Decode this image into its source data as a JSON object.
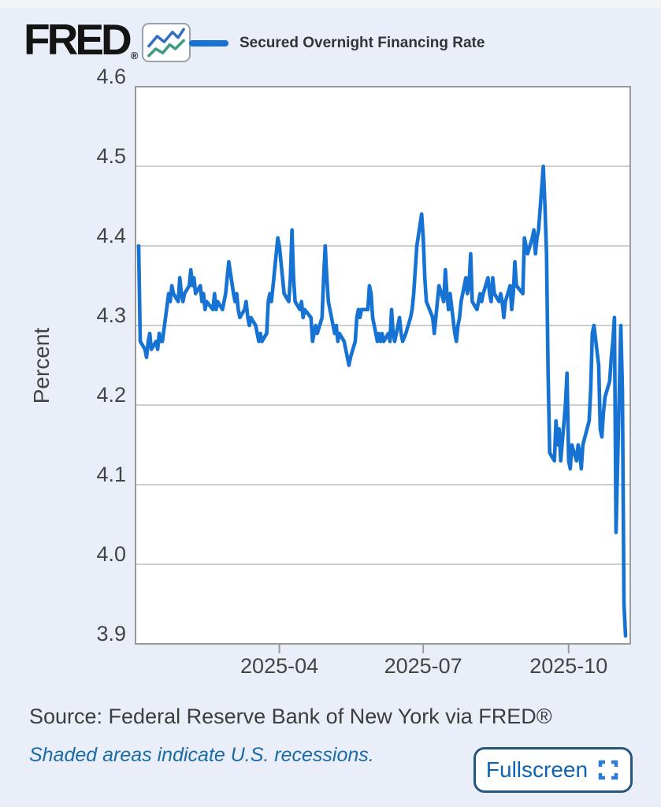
{
  "page": {
    "background": "#e9eef8",
    "top_strip_color": "#f3f4f6"
  },
  "header": {
    "logo_text": "FRED",
    "logo_registered": "®",
    "logo_icon": "fred-sparkline-icon",
    "logo_icon_colors": {
      "upper_line": "#336fc0",
      "lower_line": "#3d9b80"
    }
  },
  "legend": {
    "swatch_color": "#1673d3",
    "label": "Secured Overnight Financing Rate"
  },
  "chart_data": {
    "type": "line",
    "title": "",
    "ylabel": "Percent",
    "ylim": [
      3.9,
      4.6
    ],
    "y_ticks": [
      3.9,
      4.0,
      4.1,
      4.2,
      4.3,
      4.4,
      4.5,
      4.6
    ],
    "x_ticks": [
      {
        "label": "2025-04",
        "date": "2025-04-01"
      },
      {
        "label": "2025-07",
        "date": "2025-07-01"
      },
      {
        "label": "2025-10",
        "date": "2025-10-01"
      }
    ],
    "x_domain": [
      "2025-01-01",
      "2025-11-09"
    ],
    "grid": "horizontal",
    "legend_position": "top",
    "plot_bg": "#ffffff",
    "grid_color": "#cdcdcd",
    "axis_color": "#9a9a9a",
    "line_color": "#1673d3",
    "series": [
      {
        "name": "Secured Overnight Financing Rate",
        "units": "Percent",
        "dates": [
          "2025-01-02",
          "2025-01-03",
          "2025-01-06",
          "2025-01-07",
          "2025-01-08",
          "2025-01-09",
          "2025-01-10",
          "2025-01-13",
          "2025-01-14",
          "2025-01-15",
          "2025-01-16",
          "2025-01-17",
          "2025-01-21",
          "2025-01-22",
          "2025-01-23",
          "2025-01-24",
          "2025-01-27",
          "2025-01-28",
          "2025-01-29",
          "2025-01-30",
          "2025-01-31",
          "2025-02-03",
          "2025-02-04",
          "2025-02-05",
          "2025-02-06",
          "2025-02-07",
          "2025-02-10",
          "2025-02-11",
          "2025-02-12",
          "2025-02-13",
          "2025-02-14",
          "2025-02-18",
          "2025-02-19",
          "2025-02-20",
          "2025-02-21",
          "2025-02-24",
          "2025-02-25",
          "2025-02-26",
          "2025-02-27",
          "2025-02-28",
          "2025-03-03",
          "2025-03-04",
          "2025-03-05",
          "2025-03-06",
          "2025-03-07",
          "2025-03-10",
          "2025-03-11",
          "2025-03-12",
          "2025-03-13",
          "2025-03-14",
          "2025-03-17",
          "2025-03-18",
          "2025-03-19",
          "2025-03-20",
          "2025-03-21",
          "2025-03-24",
          "2025-03-25",
          "2025-03-26",
          "2025-03-27",
          "2025-03-28",
          "2025-03-31",
          "2025-04-01",
          "2025-04-02",
          "2025-04-03",
          "2025-04-04",
          "2025-04-07",
          "2025-04-08",
          "2025-04-09",
          "2025-04-10",
          "2025-04-11",
          "2025-04-14",
          "2025-04-15",
          "2025-04-16",
          "2025-04-17",
          "2025-04-21",
          "2025-04-22",
          "2025-04-23",
          "2025-04-24",
          "2025-04-25",
          "2025-04-28",
          "2025-04-29",
          "2025-04-30",
          "2025-05-01",
          "2025-05-02",
          "2025-05-05",
          "2025-05-06",
          "2025-05-07",
          "2025-05-08",
          "2025-05-09",
          "2025-05-12",
          "2025-05-13",
          "2025-05-14",
          "2025-05-15",
          "2025-05-16",
          "2025-05-19",
          "2025-05-20",
          "2025-05-21",
          "2025-05-22",
          "2025-05-23",
          "2025-05-27",
          "2025-05-28",
          "2025-05-29",
          "2025-05-30",
          "2025-06-02",
          "2025-06-03",
          "2025-06-04",
          "2025-06-05",
          "2025-06-06",
          "2025-06-09",
          "2025-06-10",
          "2025-06-11",
          "2025-06-12",
          "2025-06-13",
          "2025-06-16",
          "2025-06-17",
          "2025-06-18",
          "2025-06-20",
          "2025-06-23",
          "2025-06-24",
          "2025-06-25",
          "2025-06-26",
          "2025-06-27",
          "2025-06-30",
          "2025-07-01",
          "2025-07-02",
          "2025-07-03",
          "2025-07-07",
          "2025-07-08",
          "2025-07-09",
          "2025-07-10",
          "2025-07-11",
          "2025-07-14",
          "2025-07-15",
          "2025-07-16",
          "2025-07-17",
          "2025-07-18",
          "2025-07-21",
          "2025-07-22",
          "2025-07-23",
          "2025-07-24",
          "2025-07-25",
          "2025-07-28",
          "2025-07-29",
          "2025-07-30",
          "2025-07-31",
          "2025-08-01",
          "2025-08-04",
          "2025-08-05",
          "2025-08-06",
          "2025-08-07",
          "2025-08-08",
          "2025-08-11",
          "2025-08-12",
          "2025-08-13",
          "2025-08-14",
          "2025-08-15",
          "2025-08-18",
          "2025-08-19",
          "2025-08-20",
          "2025-08-21",
          "2025-08-22",
          "2025-08-25",
          "2025-08-26",
          "2025-08-27",
          "2025-08-28",
          "2025-08-29",
          "2025-09-02",
          "2025-09-03",
          "2025-09-04",
          "2025-09-05",
          "2025-09-08",
          "2025-09-09",
          "2025-09-10",
          "2025-09-11",
          "2025-09-12",
          "2025-09-15",
          "2025-09-16",
          "2025-09-17",
          "2025-09-18",
          "2025-09-19",
          "2025-09-22",
          "2025-09-23",
          "2025-09-24",
          "2025-09-25",
          "2025-09-26",
          "2025-09-29",
          "2025-09-30",
          "2025-10-01",
          "2025-10-02",
          "2025-10-03",
          "2025-10-06",
          "2025-10-07",
          "2025-10-08",
          "2025-10-09",
          "2025-10-10",
          "2025-10-14",
          "2025-10-15",
          "2025-10-16",
          "2025-10-17",
          "2025-10-20",
          "2025-10-21",
          "2025-10-22",
          "2025-10-23",
          "2025-10-24",
          "2025-10-27",
          "2025-10-28",
          "2025-10-29",
          "2025-10-30",
          "2025-10-31",
          "2025-11-03",
          "2025-11-04",
          "2025-11-05",
          "2025-11-06"
        ],
        "values": [
          4.4,
          4.28,
          4.27,
          4.26,
          4.28,
          4.29,
          4.27,
          4.28,
          4.27,
          4.29,
          4.28,
          4.28,
          4.34,
          4.33,
          4.35,
          4.34,
          4.33,
          4.36,
          4.34,
          4.33,
          4.34,
          4.35,
          4.37,
          4.35,
          4.36,
          4.34,
          4.35,
          4.33,
          4.34,
          4.32,
          4.33,
          4.32,
          4.34,
          4.32,
          4.33,
          4.32,
          4.33,
          4.34,
          4.36,
          4.38,
          4.34,
          4.33,
          4.34,
          4.32,
          4.31,
          4.32,
          4.33,
          4.31,
          4.3,
          4.31,
          4.3,
          4.29,
          4.28,
          4.29,
          4.28,
          4.29,
          4.33,
          4.34,
          4.33,
          4.35,
          4.41,
          4.4,
          4.38,
          4.36,
          4.34,
          4.33,
          4.36,
          4.42,
          4.36,
          4.33,
          4.32,
          4.33,
          4.31,
          4.32,
          4.31,
          4.28,
          4.29,
          4.3,
          4.29,
          4.31,
          4.36,
          4.4,
          4.36,
          4.33,
          4.3,
          4.29,
          4.3,
          4.28,
          4.29,
          4.28,
          4.27,
          4.26,
          4.25,
          4.26,
          4.28,
          4.31,
          4.32,
          4.31,
          4.32,
          4.32,
          4.35,
          4.34,
          4.31,
          4.28,
          4.29,
          4.28,
          4.29,
          4.28,
          4.29,
          4.28,
          4.32,
          4.29,
          4.28,
          4.31,
          4.29,
          4.28,
          4.29,
          4.31,
          4.32,
          4.34,
          4.37,
          4.4,
          4.44,
          4.41,
          4.36,
          4.33,
          4.31,
          4.29,
          4.31,
          4.33,
          4.35,
          4.33,
          4.37,
          4.34,
          4.32,
          4.34,
          4.29,
          4.28,
          4.3,
          4.31,
          4.33,
          4.36,
          4.34,
          4.35,
          4.39,
          4.33,
          4.32,
          4.33,
          4.34,
          4.33,
          4.34,
          4.36,
          4.34,
          4.33,
          4.36,
          4.34,
          4.33,
          4.34,
          4.33,
          4.31,
          4.33,
          4.35,
          4.32,
          4.34,
          4.38,
          4.35,
          4.34,
          4.41,
          4.4,
          4.39,
          4.41,
          4.42,
          4.39,
          4.41,
          4.42,
          4.5,
          4.45,
          4.39,
          4.24,
          4.14,
          4.13,
          4.18,
          4.15,
          4.17,
          4.13,
          4.2,
          4.24,
          4.13,
          4.12,
          4.15,
          4.13,
          4.15,
          4.14,
          4.12,
          4.15,
          4.18,
          4.22,
          4.29,
          4.3,
          4.25,
          4.17,
          4.16,
          4.19,
          4.21,
          4.23,
          4.26,
          4.28,
          4.31,
          4.04,
          4.3,
          4.22,
          3.95,
          3.91
        ]
      }
    ]
  },
  "footer": {
    "source_text": "Source: Federal Reserve Bank of New York via FRED®",
    "recession_note": "Shaded areas indicate U.S. recessions.",
    "fullscreen_label": "Fullscreen",
    "fullscreen_icon": "fullscreen-expand-icon"
  }
}
